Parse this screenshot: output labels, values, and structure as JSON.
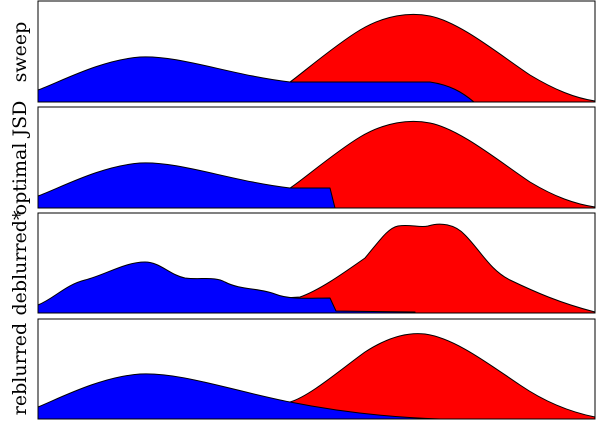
{
  "colors": {
    "red": "#ff0000",
    "blue": "#0000ff",
    "frame": "#000000"
  },
  "panels": [
    {
      "label": "sweep"
    },
    {
      "label": "optimal JSD"
    },
    {
      "label": "deblurred*"
    },
    {
      "label": "reblurred"
    }
  ]
}
